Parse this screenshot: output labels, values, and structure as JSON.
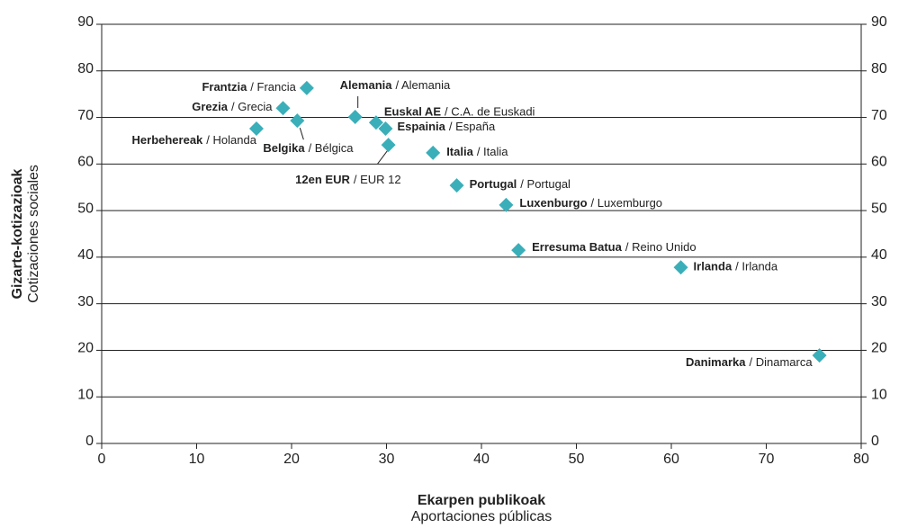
{
  "chart_data": {
    "type": "scatter",
    "x_label": "Ekarpen publikoak",
    "x_label_es": "Aportaciones públicas",
    "y_label": "Gizarte-kotizazioak",
    "y_label_es": "Cotizaciones sociales",
    "color": "#3aafb9",
    "labels": [
      "Frantzia",
      "Grezia",
      "Herbehereak",
      "Belgika",
      "Alemania",
      "Euskal AE",
      "Espainia",
      "12en EUR",
      "Italia",
      "Portugal",
      "Luxenburgo",
      "Erresuma Batua",
      "Irlanda",
      "Danimarka"
    ],
    "labels_es": [
      "/ Francia",
      "/ Grecia",
      "/ Holanda",
      "/ Bélgica",
      "/ Alemania",
      "/ C.A. de Euskadi",
      "/ España",
      "/ EUR 12",
      "/ Italia",
      "/ Portugal",
      "/ Luxemburgo",
      "/ Reino Unido",
      "/ Irlanda",
      "/ Dinamarca"
    ],
    "x": [
      21.6,
      19.1,
      16.3,
      20.6,
      26.7,
      28.9,
      29.9,
      30.2,
      34.9,
      37.4,
      42.6,
      43.9,
      61.0,
      75.6
    ],
    "values": [
      76.3,
      72.0,
      67.6,
      69.3,
      70.1,
      68.9,
      67.6,
      64.1,
      62.4,
      55.4,
      51.2,
      41.5,
      37.8,
      18.9
    ],
    "xlim": [
      0,
      80
    ],
    "xticks": [
      0,
      10,
      20,
      30,
      40,
      50,
      60,
      70,
      80
    ],
    "ylim": [
      0,
      90
    ],
    "yticks": [
      0,
      10,
      20,
      30,
      40,
      50,
      60,
      70,
      80,
      90
    ],
    "grid": true
  }
}
